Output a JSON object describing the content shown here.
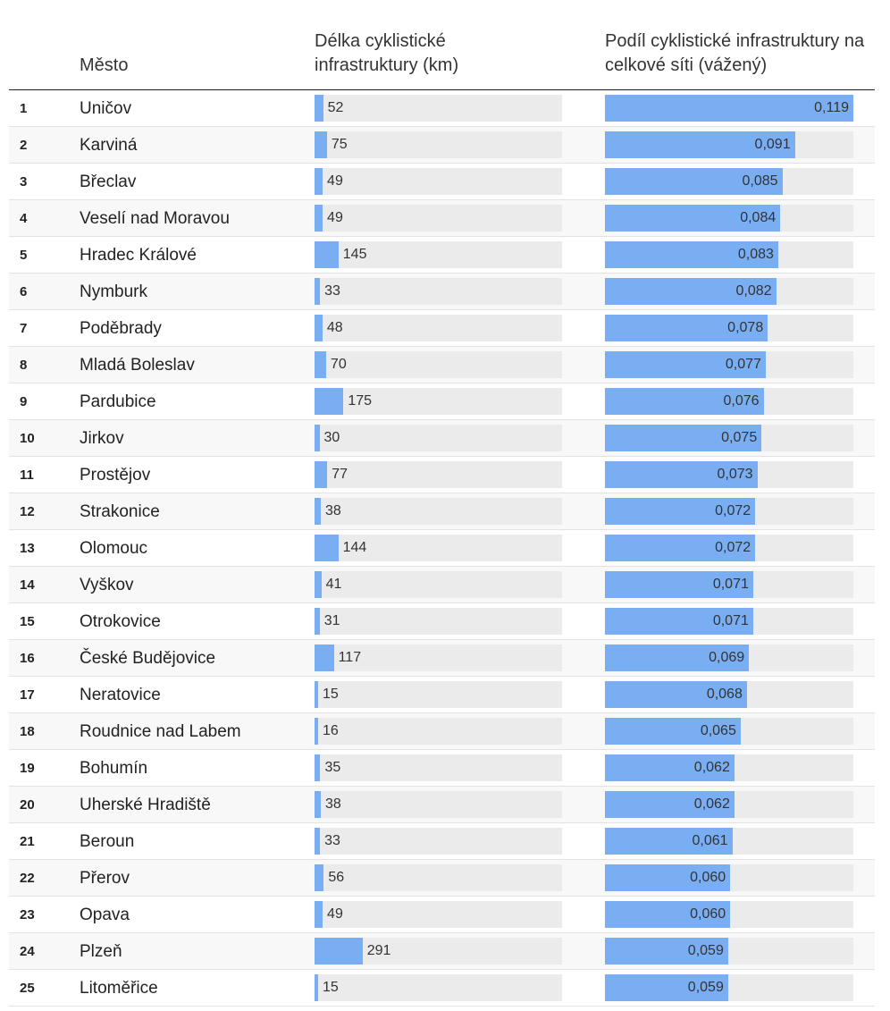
{
  "header": {
    "city": "Město",
    "length": "Délka cyklistické infrastruktury (km)",
    "share": "Podíl cyklistické infrastruktury na celkové síti (vážený)"
  },
  "colors": {
    "bar": "#7aaef3",
    "track": "#ebebeb"
  },
  "chart_data": {
    "type": "table",
    "columns": [
      "",
      "Město",
      "Délka cyklistické infrastruktury (km)",
      "Podíl cyklistické infrastruktury na celkové síti (vážený)"
    ],
    "length_max": 1500,
    "share_max": 0.119,
    "rows": [
      {
        "rank": "1",
        "city": "Uničov",
        "length": 52,
        "length_label": "52",
        "share": 0.119,
        "share_label": "0,119"
      },
      {
        "rank": "2",
        "city": "Karviná",
        "length": 75,
        "length_label": "75",
        "share": 0.091,
        "share_label": "0,091"
      },
      {
        "rank": "3",
        "city": "Břeclav",
        "length": 49,
        "length_label": "49",
        "share": 0.085,
        "share_label": "0,085"
      },
      {
        "rank": "4",
        "city": "Veselí nad Moravou",
        "length": 49,
        "length_label": "49",
        "share": 0.084,
        "share_label": "0,084"
      },
      {
        "rank": "5",
        "city": "Hradec Králové",
        "length": 145,
        "length_label": "145",
        "share": 0.083,
        "share_label": "0,083"
      },
      {
        "rank": "6",
        "city": "Nymburk",
        "length": 33,
        "length_label": "33",
        "share": 0.082,
        "share_label": "0,082"
      },
      {
        "rank": "7",
        "city": "Poděbrady",
        "length": 48,
        "length_label": "48",
        "share": 0.078,
        "share_label": "0,078"
      },
      {
        "rank": "8",
        "city": "Mladá Boleslav",
        "length": 70,
        "length_label": "70",
        "share": 0.077,
        "share_label": "0,077"
      },
      {
        "rank": "9",
        "city": "Pardubice",
        "length": 175,
        "length_label": "175",
        "share": 0.076,
        "share_label": "0,076"
      },
      {
        "rank": "10",
        "city": "Jirkov",
        "length": 30,
        "length_label": "30",
        "share": 0.075,
        "share_label": "0,075"
      },
      {
        "rank": "11",
        "city": "Prostějov",
        "length": 77,
        "length_label": "77",
        "share": 0.073,
        "share_label": "0,073"
      },
      {
        "rank": "12",
        "city": "Strakonice",
        "length": 38,
        "length_label": "38",
        "share": 0.072,
        "share_label": "0,072"
      },
      {
        "rank": "13",
        "city": "Olomouc",
        "length": 144,
        "length_label": "144",
        "share": 0.072,
        "share_label": "0,072"
      },
      {
        "rank": "14",
        "city": "Vyškov",
        "length": 41,
        "length_label": "41",
        "share": 0.071,
        "share_label": "0,071"
      },
      {
        "rank": "15",
        "city": "Otrokovice",
        "length": 31,
        "length_label": "31",
        "share": 0.071,
        "share_label": "0,071"
      },
      {
        "rank": "16",
        "city": "České Budějovice",
        "length": 117,
        "length_label": "117",
        "share": 0.069,
        "share_label": "0,069"
      },
      {
        "rank": "17",
        "city": "Neratovice",
        "length": 15,
        "length_label": "15",
        "share": 0.068,
        "share_label": "0,068"
      },
      {
        "rank": "18",
        "city": "Roudnice nad Labem",
        "length": 16,
        "length_label": "16",
        "share": 0.065,
        "share_label": "0,065"
      },
      {
        "rank": "19",
        "city": "Bohumín",
        "length": 35,
        "length_label": "35",
        "share": 0.062,
        "share_label": "0,062"
      },
      {
        "rank": "20",
        "city": "Uherské Hradiště",
        "length": 38,
        "length_label": "38",
        "share": 0.062,
        "share_label": "0,062"
      },
      {
        "rank": "21",
        "city": "Beroun",
        "length": 33,
        "length_label": "33",
        "share": 0.061,
        "share_label": "0,061"
      },
      {
        "rank": "22",
        "city": "Přerov",
        "length": 56,
        "length_label": "56",
        "share": 0.06,
        "share_label": "0,060"
      },
      {
        "rank": "23",
        "city": "Opava",
        "length": 49,
        "length_label": "49",
        "share": 0.06,
        "share_label": "0,060"
      },
      {
        "rank": "24",
        "city": "Plzeň",
        "length": 291,
        "length_label": "291",
        "share": 0.059,
        "share_label": "0,059"
      },
      {
        "rank": "25",
        "city": "Litoměřice",
        "length": 15,
        "length_label": "15",
        "share": 0.059,
        "share_label": "0,059"
      }
    ]
  }
}
